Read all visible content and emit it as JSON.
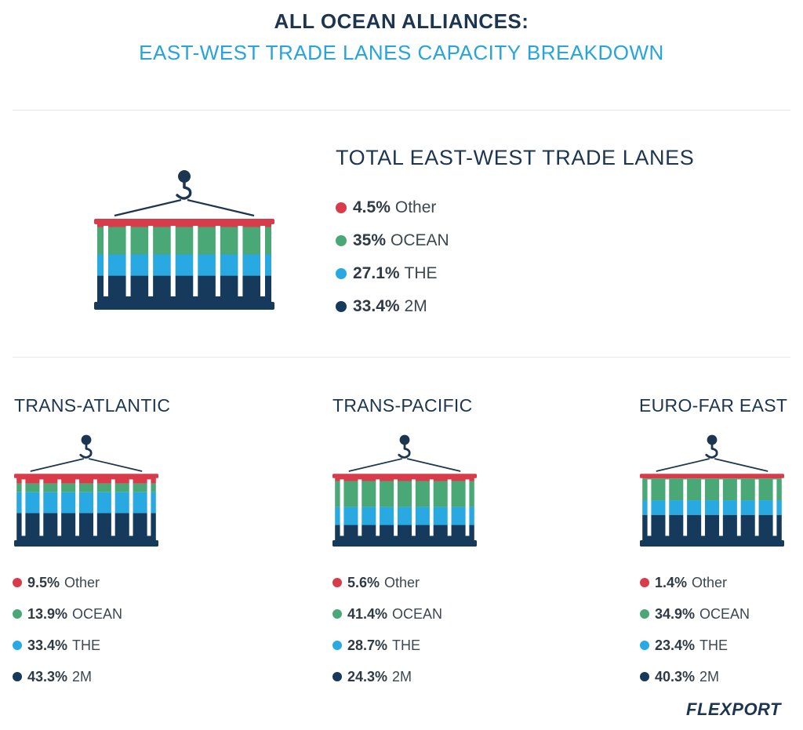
{
  "title_line1": "ALL OCEAN ALLIANCES:",
  "title_line2": "EAST-WEST TRADE LANES CAPACITY BREAKDOWN",
  "logo": "FLEXPORT",
  "colors": {
    "Other": "#d83c4a",
    "OCEAN": "#4aa876",
    "THE": "#28a9e1",
    "2M": "#153a5b",
    "dark": "#1c3551"
  },
  "chart_data": [
    {
      "type": "bar",
      "title": "TOTAL EAST-WEST TRADE LANES",
      "series": [
        {
          "name": "Other",
          "value": 4.5
        },
        {
          "name": "OCEAN",
          "value": 35
        },
        {
          "name": "THE",
          "value": 27.1
        },
        {
          "name": "2M",
          "value": 33.4
        }
      ],
      "labels": [
        "4.5%",
        "35%",
        "27.1%",
        "33.4%"
      ]
    },
    {
      "type": "bar",
      "title": "TRANS-ATLANTIC",
      "series": [
        {
          "name": "Other",
          "value": 9.5
        },
        {
          "name": "OCEAN",
          "value": 13.9
        },
        {
          "name": "THE",
          "value": 33.4
        },
        {
          "name": "2M",
          "value": 43.3
        }
      ],
      "labels": [
        "9.5%",
        "13.9%",
        "33.4%",
        "43.3%"
      ]
    },
    {
      "type": "bar",
      "title": "TRANS-PACIFIC",
      "series": [
        {
          "name": "Other",
          "value": 5.6
        },
        {
          "name": "OCEAN",
          "value": 41.4
        },
        {
          "name": "THE",
          "value": 28.7
        },
        {
          "name": "2M",
          "value": 24.3
        }
      ],
      "labels": [
        "5.6%",
        "41.4%",
        "28.7%",
        "24.3%"
      ]
    },
    {
      "type": "bar",
      "title": "EURO-FAR EAST",
      "series": [
        {
          "name": "Other",
          "value": 1.4
        },
        {
          "name": "OCEAN",
          "value": 34.9
        },
        {
          "name": "THE",
          "value": 23.4
        },
        {
          "name": "2M",
          "value": 40.3
        }
      ],
      "labels": [
        "1.4%",
        "34.9%",
        "23.4%",
        "40.3%"
      ]
    }
  ]
}
